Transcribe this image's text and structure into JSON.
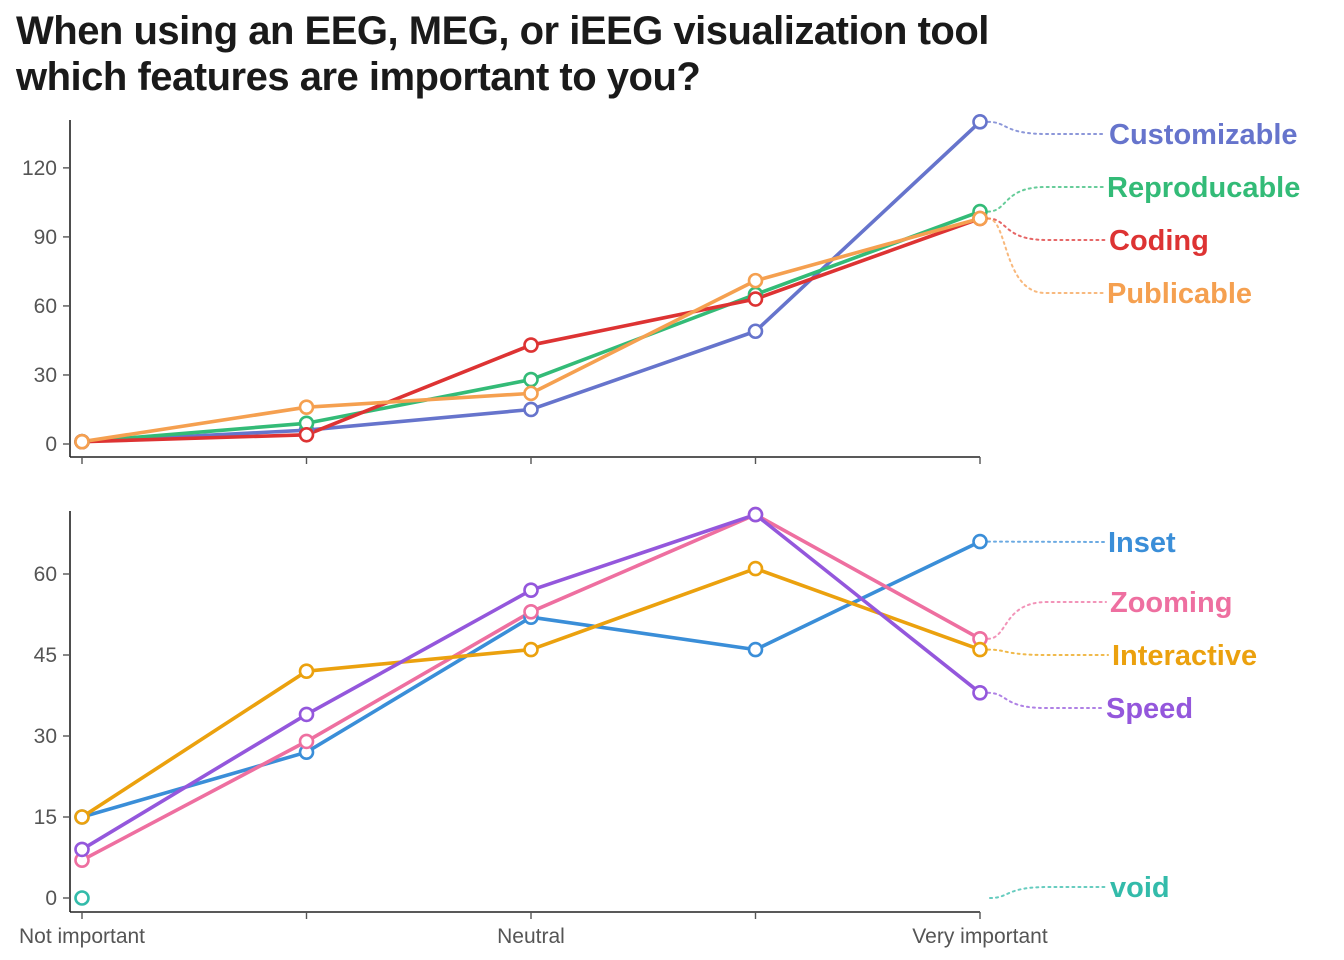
{
  "title_lines": [
    "When using an EEG, MEG, or iEEG visualization tool",
    "which features are important to you?"
  ],
  "chart_data": [
    {
      "type": "line",
      "x": [
        1,
        2,
        3,
        4,
        5
      ],
      "xticklabels": [
        "Not important",
        "",
        "Neutral",
        "",
        "Very important"
      ],
      "yticks": [
        0,
        30,
        60,
        90,
        120
      ],
      "ylim": [
        0,
        140
      ],
      "grid": false,
      "legend": "direct labels at right end",
      "series": [
        {
          "name": "Customizable",
          "color": "#6674cc",
          "values": [
            1,
            6,
            15,
            49,
            140
          ]
        },
        {
          "name": "Reproducable",
          "color": "#33bb77",
          "values": [
            1,
            9,
            28,
            65,
            101
          ]
        },
        {
          "name": "Coding",
          "color": "#dd3333",
          "values": [
            1,
            4,
            43,
            63,
            98
          ]
        },
        {
          "name": "Publicable",
          "color": "#f5a050",
          "values": [
            1,
            16,
            22,
            71,
            98
          ]
        }
      ]
    },
    {
      "type": "line",
      "x": [
        1,
        2,
        3,
        4,
        5
      ],
      "xticklabels": [
        "Not important",
        "",
        "Neutral",
        "",
        "Very important"
      ],
      "yticks": [
        0,
        15,
        30,
        45,
        60
      ],
      "ylim": [
        0,
        71
      ],
      "grid": false,
      "legend": "direct labels at right end",
      "series": [
        {
          "name": "Inset",
          "color": "#3a8ed8",
          "values": [
            15,
            27,
            52,
            46,
            66
          ]
        },
        {
          "name": "Zooming",
          "color": "#ee6fa0",
          "values": [
            7,
            29,
            53,
            71,
            48
          ]
        },
        {
          "name": "Interactive",
          "color": "#eba10e",
          "values": [
            15,
            42,
            46,
            61,
            46
          ]
        },
        {
          "name": "Speed",
          "color": "#9457dc",
          "values": [
            9,
            34,
            57,
            71,
            38
          ]
        },
        {
          "name": "void",
          "color": "#33bbaa",
          "values": [
            0,
            null,
            null,
            null,
            null
          ]
        }
      ]
    }
  ]
}
